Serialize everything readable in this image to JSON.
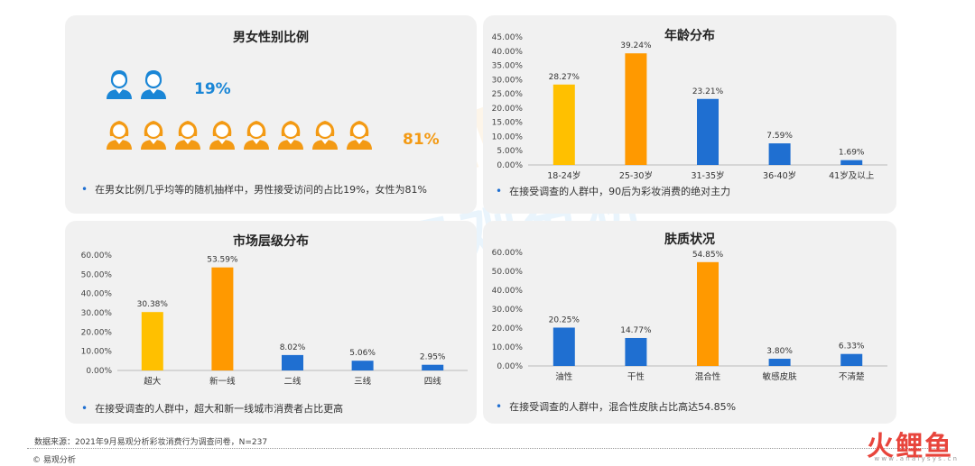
{
  "gender": {
    "title": "男女性别比例",
    "male_pct": "19%",
    "female_pct": "81%",
    "male_icon_count": 2,
    "female_icon_count": 8,
    "note": "在男女比例几乎均等的随机抽样中，男性接受访问的占比19%，女性为81%",
    "male_color": "#1a86d6",
    "female_color": "#f39a14"
  },
  "age": {
    "title": "年龄分布",
    "note": "在接受调查的人群中，90后为彩妆消费的绝对主力"
  },
  "market": {
    "title": "市场层级分布",
    "note": "在接受调查的人群中，超大和新一线城市消费者占比更高"
  },
  "skin": {
    "title": "肤质状况",
    "note": "在接受调查的人群中，混合性皮肤占比高达54.85%"
  },
  "footer": {
    "source": "数据来源：2021年9月易观分析彩妆消费行为调查问卷，N=237",
    "copyright": "© 易观分析",
    "watermark": "易观分析",
    "watermark_latin": "analysys",
    "logo": "火鲤鱼",
    "logo_sub": "w w w . a n a l y s y s . c n"
  },
  "chart_data": [
    {
      "type": "bar",
      "title": "年龄分布",
      "categories": [
        "18-24岁",
        "25-30岁",
        "31-35岁",
        "36-40岁",
        "41岁及以上"
      ],
      "values": [
        28.27,
        39.24,
        23.21,
        7.59,
        1.69
      ],
      "labels": [
        "28.27%",
        "39.24%",
        "23.21%",
        "7.59%",
        "1.69%"
      ],
      "colors": [
        "#ffc000",
        "#ff9900",
        "#1f6fd1",
        "#1f6fd1",
        "#1f6fd1"
      ],
      "ylim": [
        0,
        45
      ],
      "yticks": [
        0,
        5,
        10,
        15,
        20,
        25,
        30,
        35,
        40,
        45
      ],
      "ytick_labels": [
        "0.00%",
        "5.00%",
        "10.00%",
        "15.00%",
        "20.00%",
        "25.00%",
        "30.00%",
        "35.00%",
        "40.00%",
        "45.00%"
      ]
    },
    {
      "type": "bar",
      "title": "市场层级分布",
      "categories": [
        "超大",
        "新一线",
        "二线",
        "三线",
        "四线"
      ],
      "values": [
        30.38,
        53.59,
        8.02,
        5.06,
        2.95
      ],
      "labels": [
        "30.38%",
        "53.59%",
        "8.02%",
        "5.06%",
        "2.95%"
      ],
      "colors": [
        "#ffc000",
        "#ff9900",
        "#1f6fd1",
        "#1f6fd1",
        "#1f6fd1"
      ],
      "ylim": [
        0,
        60
      ],
      "yticks": [
        0,
        10,
        20,
        30,
        40,
        50,
        60
      ],
      "ytick_labels": [
        "0.00%",
        "10.00%",
        "20.00%",
        "30.00%",
        "40.00%",
        "50.00%",
        "60.00%"
      ]
    },
    {
      "type": "bar",
      "title": "肤质状况",
      "categories": [
        "油性",
        "干性",
        "混合性",
        "敏感皮肤",
        "不清楚"
      ],
      "values": [
        20.25,
        14.77,
        54.85,
        3.8,
        6.33
      ],
      "labels": [
        "20.25%",
        "14.77%",
        "54.85%",
        "3.80%",
        "6.33%"
      ],
      "colors": [
        "#1f6fd1",
        "#1f6fd1",
        "#ff9900",
        "#1f6fd1",
        "#1f6fd1"
      ],
      "ylim": [
        0,
        60
      ],
      "yticks": [
        0,
        10,
        20,
        30,
        40,
        50,
        60
      ],
      "ytick_labels": [
        "0.00%",
        "10.00%",
        "20.00%",
        "30.00%",
        "40.00%",
        "50.00%",
        "60.00%"
      ]
    }
  ]
}
